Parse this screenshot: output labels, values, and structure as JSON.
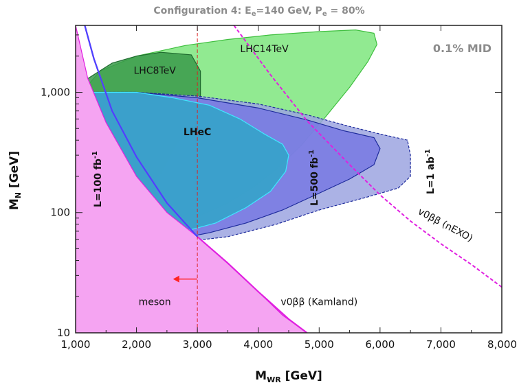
{
  "chart_data": {
    "type": "area",
    "title": "Configuration 4: Eₑ=140 GeV, Pₑ = 80%",
    "xlabel": "Mᴡʀ [GeV]",
    "ylabel": "Mₙ [GeV]",
    "xlim": [
      1000,
      8000
    ],
    "ylim": [
      10,
      3600
    ],
    "y_scale": "log",
    "x_ticks": [
      "1,000",
      "2,000",
      "3,000",
      "4,000",
      "5,000",
      "6,000",
      "7,000",
      "8,000"
    ],
    "x_tick_values": [
      1000,
      2000,
      3000,
      4000,
      5000,
      6000,
      7000,
      8000
    ],
    "y_ticks": [
      "10",
      "100",
      "1,000"
    ],
    "y_tick_values": [
      10,
      100,
      1000
    ],
    "corner_label": "0.1% MID",
    "regions": [
      {
        "name": "LHC14TeV",
        "color": "#7ee67e",
        "edge": "#3fbf3f",
        "points": [
          [
            1000,
            900
          ],
          [
            1100,
            1000
          ],
          [
            1400,
            1500
          ],
          [
            2000,
            2000
          ],
          [
            2800,
            2450
          ],
          [
            3500,
            2750
          ],
          [
            4200,
            3000
          ],
          [
            5000,
            3200
          ],
          [
            5600,
            3300
          ],
          [
            5900,
            3100
          ],
          [
            5950,
            2500
          ],
          [
            5800,
            1800
          ],
          [
            5500,
            1100
          ],
          [
            5100,
            620
          ],
          [
            4700,
            360
          ],
          [
            4300,
            230
          ],
          [
            3900,
            160
          ],
          [
            3500,
            120
          ],
          [
            3000,
            92
          ],
          [
            2500,
            75
          ],
          [
            2000,
            64
          ],
          [
            1500,
            58
          ],
          [
            1000,
            55
          ]
        ]
      },
      {
        "name": "LHC8TeV",
        "color": "#3a9a4a",
        "edge": "#1f6b2f",
        "points": [
          [
            1000,
            1000
          ],
          [
            1200,
            1300
          ],
          [
            1600,
            1750
          ],
          [
            2000,
            2000
          ],
          [
            2400,
            2150
          ],
          [
            2900,
            2050
          ],
          [
            3050,
            1500
          ],
          [
            3050,
            900
          ],
          [
            2900,
            560
          ],
          [
            2600,
            330
          ],
          [
            2400,
            210
          ],
          [
            2100,
            160
          ],
          [
            1800,
            120
          ],
          [
            1500,
            85
          ],
          [
            1300,
            60
          ],
          [
            1150,
            48
          ],
          [
            1000,
            36
          ]
        ]
      },
      {
        "name": "L=1 ab⁻¹",
        "color": "#9ca4e0",
        "edge": "#1e2b9c",
        "points": [
          [
            1000,
            1000
          ],
          [
            2000,
            1000
          ],
          [
            3000,
            930
          ],
          [
            4000,
            800
          ],
          [
            4800,
            650
          ],
          [
            5500,
            520
          ],
          [
            6000,
            450
          ],
          [
            6450,
            400
          ],
          [
            6500,
            300
          ],
          [
            6500,
            200
          ],
          [
            6300,
            160
          ],
          [
            5800,
            135
          ],
          [
            5000,
            105
          ],
          [
            4300,
            80
          ],
          [
            3500,
            63
          ],
          [
            2500,
            55
          ],
          [
            1500,
            51
          ],
          [
            1000,
            50
          ]
        ]
      },
      {
        "name": "L=500 fb⁻¹",
        "color": "#7778e3",
        "edge": "#1e2b9c",
        "points": [
          [
            1000,
            1000
          ],
          [
            2000,
            1000
          ],
          [
            3000,
            900
          ],
          [
            4000,
            740
          ],
          [
            4800,
            590
          ],
          [
            5400,
            480
          ],
          [
            5900,
            420
          ],
          [
            6000,
            340
          ],
          [
            5900,
            250
          ],
          [
            5500,
            190
          ],
          [
            5000,
            145
          ],
          [
            4400,
            105
          ],
          [
            3800,
            82
          ],
          [
            3200,
            68
          ],
          [
            2500,
            58
          ],
          [
            1500,
            51
          ],
          [
            1000,
            50
          ]
        ]
      },
      {
        "name": "L=100 fb⁻¹",
        "color": "#30a6c8",
        "edge": "#3fe8ff",
        "points": [
          [
            1000,
            1000
          ],
          [
            2000,
            1000
          ],
          [
            2600,
            900
          ],
          [
            3200,
            780
          ],
          [
            3700,
            600
          ],
          [
            4100,
            450
          ],
          [
            4400,
            370
          ],
          [
            4500,
            300
          ],
          [
            4450,
            220
          ],
          [
            4200,
            150
          ],
          [
            3800,
            110
          ],
          [
            3300,
            82
          ],
          [
            2800,
            70
          ],
          [
            2300,
            62
          ],
          [
            1800,
            56
          ],
          [
            1500,
            53
          ],
          [
            1000,
            52
          ]
        ]
      },
      {
        "name": "meson",
        "color": "#f5a4f2",
        "edge": "#e020e0",
        "points": [
          [
            1000,
            3600
          ],
          [
            1200,
            1300
          ],
          [
            1500,
            560
          ],
          [
            2000,
            200
          ],
          [
            2500,
            100
          ],
          [
            3000,
            63
          ],
          [
            3500,
            38
          ],
          [
            4000,
            22
          ],
          [
            4400,
            14
          ],
          [
            4800,
            10
          ],
          [
            1000,
            10
          ]
        ]
      }
    ],
    "lines": [
      {
        "name": "v0ββ (Kamland)",
        "color": "#e020e0",
        "style": "solid",
        "points": [
          [
            1150,
            3600
          ],
          [
            1300,
            1900
          ],
          [
            1600,
            700
          ],
          [
            2000,
            290
          ],
          [
            2500,
            120
          ],
          [
            3000,
            63
          ],
          [
            3500,
            38
          ],
          [
            4000,
            22
          ],
          [
            4500,
            13
          ],
          [
            4800,
            10
          ]
        ]
      },
      {
        "name": "v0ββ (nEXO)",
        "color": "#e020e0",
        "style": "dashed",
        "points": [
          [
            3600,
            3600
          ],
          [
            4200,
            1400
          ],
          [
            4800,
            580
          ],
          [
            5500,
            250
          ],
          [
            6000,
            140
          ],
          [
            6500,
            85
          ],
          [
            7000,
            55
          ],
          [
            7500,
            37
          ],
          [
            8000,
            24
          ]
        ]
      },
      {
        "name": "LHeC limit",
        "color": "#dd2222",
        "style": "dashed",
        "points": [
          [
            3000,
            10
          ],
          [
            3000,
            3600
          ]
        ]
      },
      {
        "name": "boundary",
        "color": "#4a44ff",
        "style": "solid",
        "points": [
          [
            1150,
            3600
          ],
          [
            1300,
            1900
          ],
          [
            1600,
            700
          ],
          [
            2000,
            290
          ],
          [
            2500,
            120
          ],
          [
            3000,
            63
          ]
        ]
      }
    ],
    "arrow": {
      "from": [
        3000,
        28
      ],
      "to": [
        2600,
        28
      ],
      "color": "#ff2222"
    },
    "labels": [
      {
        "text": "LHC14TeV",
        "at": [
          4100,
          2150
        ],
        "bold": false
      },
      {
        "text": "LHC8TeV",
        "at": [
          2300,
          1430
        ],
        "bold": false
      },
      {
        "text": "LHeC",
        "at": [
          3000,
          440
        ],
        "bold": true,
        "big": true
      },
      {
        "text": "meson",
        "at": [
          2300,
          17
        ],
        "bold": false
      },
      {
        "text": "v0ββ (Kamland)",
        "at": [
          5000,
          17
        ],
        "bold": false
      },
      {
        "text": "v0ββ (nEXO)",
        "at": [
          7050,
          75
        ],
        "bold": false,
        "rotate": 28
      }
    ]
  },
  "rotated_labels": {
    "l100_main": "L=100 fb",
    "l100_sup": "-1",
    "l500_main": "L=500 fb",
    "l500_sup": "-1",
    "l1ab_main": "L=1 ab",
    "l1ab_sup": "-1"
  },
  "title_parts": {
    "a": "Configuration 4: E",
    "a_sub": "e",
    "b": "=140 GeV, P",
    "b_sub": "e",
    "c": " = 80%"
  },
  "axis_parts": {
    "x_main": "M",
    "x_sub": "WR",
    "x_unit": " [GeV]",
    "y_main": "M",
    "y_sub": "N",
    "y_unit": " [GeV]"
  }
}
